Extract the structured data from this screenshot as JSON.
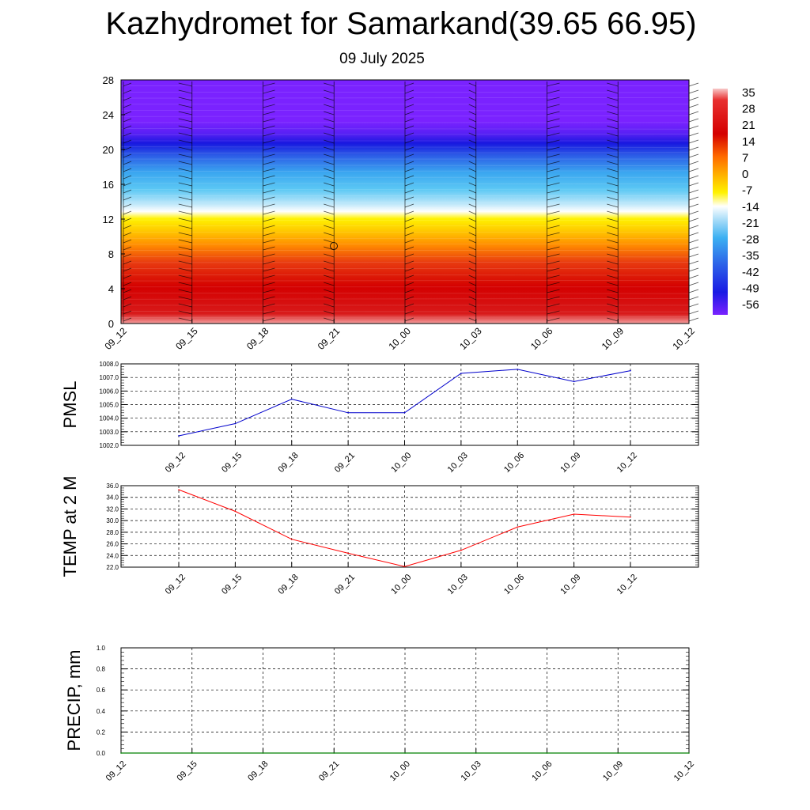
{
  "header": {
    "title": "Kazhydromet for Samarkand(39.65 66.95)",
    "date": "09 July 2025"
  },
  "chart_data": [
    {
      "type": "heatmap",
      "title": "",
      "xlabel": "",
      "ylabel": "",
      "x_ticks": [
        "09_12",
        "09_15",
        "09_18",
        "09_21",
        "10_00",
        "10_03",
        "10_06",
        "10_09",
        "10_12"
      ],
      "y_ticks": [
        0,
        4,
        8,
        12,
        16,
        20,
        24,
        28
      ],
      "ylim": [
        0,
        28
      ],
      "colorbar_labels": [
        "35",
        "28",
        "21",
        "14",
        "7",
        "0",
        "-7",
        "-14",
        "-21",
        "-28",
        "-35",
        "-42",
        "-49",
        "-56"
      ],
      "colorbar_range": [
        -63,
        42
      ],
      "wind_barbs": true,
      "colors": {
        "warm": "#d40000",
        "cold": "#7a22ff",
        "freezing": "#ffffff"
      }
    },
    {
      "type": "line",
      "ylabel": "PMSL",
      "x": [
        "09_12",
        "09_15",
        "09_18",
        "09_21",
        "10_00",
        "10_03",
        "10_06",
        "10_09",
        "10_12"
      ],
      "y_ticks": [
        "1002.0",
        "1003.0",
        "1004.0",
        "1005.0",
        "1006.0",
        "1007.0",
        "1008.0"
      ],
      "ylim": [
        1002.0,
        1008.0
      ],
      "series": [
        {
          "values": [
            1002.7,
            1003.6,
            1005.4,
            1004.4,
            1004.4,
            1007.3,
            1007.6,
            1006.7,
            1007.5
          ],
          "color": "#0000cc"
        }
      ],
      "grid": true
    },
    {
      "type": "line",
      "ylabel": "TEMP at 2 M",
      "x": [
        "09_12",
        "09_15",
        "09_18",
        "09_21",
        "10_00",
        "10_03",
        "10_06",
        "10_09",
        "10_12"
      ],
      "y_ticks": [
        "22.0",
        "24.0",
        "26.0",
        "28.0",
        "30.0",
        "32.0",
        "34.0",
        "36.0"
      ],
      "ylim": [
        22.0,
        36.0
      ],
      "series": [
        {
          "values": [
            35.3,
            31.6,
            26.8,
            24.4,
            22.1,
            24.9,
            28.9,
            31.1,
            30.6
          ],
          "color": "#ff0000"
        }
      ],
      "grid": true
    },
    {
      "type": "line",
      "ylabel": "PRECIP, mm",
      "x": [
        "09_12",
        "09_15",
        "09_18",
        "09_21",
        "10_00",
        "10_03",
        "10_06",
        "10_09",
        "10_12"
      ],
      "y_ticks": [
        "0.0",
        "0.2",
        "0.4",
        "0.6",
        "0.8",
        "1.0"
      ],
      "ylim": [
        0.0,
        1.0
      ],
      "series": [
        {
          "values": [
            0,
            0,
            0,
            0,
            0,
            0,
            0,
            0,
            0
          ],
          "color": "#008000"
        }
      ],
      "grid": true
    }
  ]
}
